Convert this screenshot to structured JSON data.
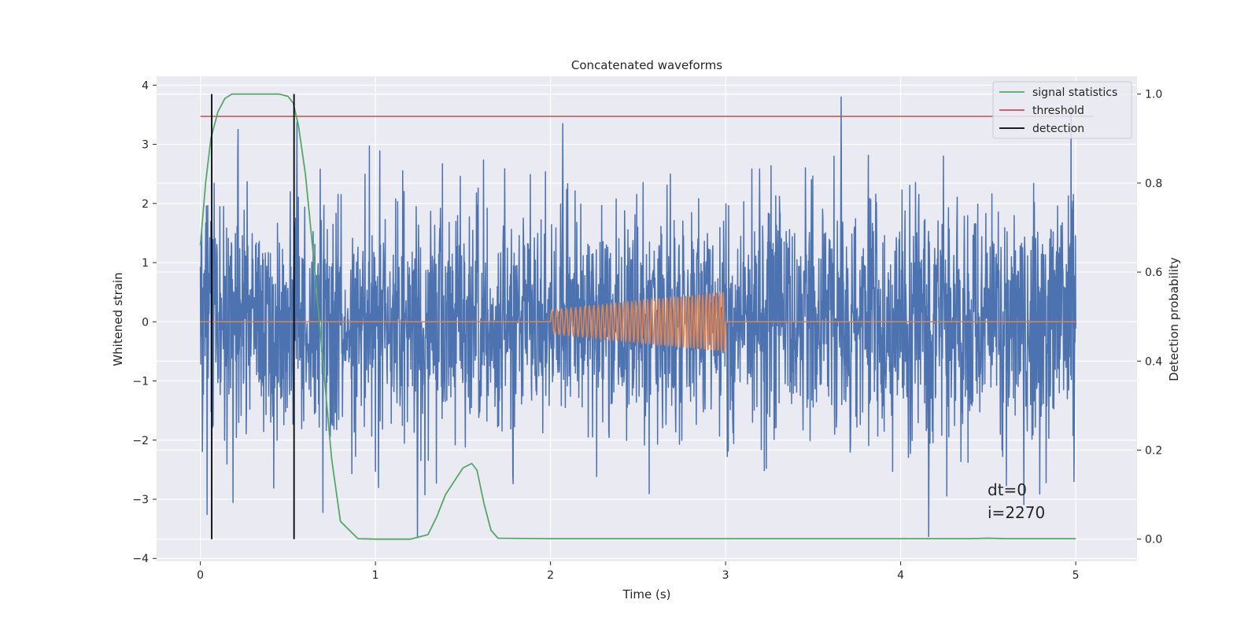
{
  "chart_data": {
    "type": "line",
    "title": "Concatenated waveforms",
    "xlabel": "Time (s)",
    "ylabel_left": "Whitened strain",
    "ylabel_right": "Detection probability",
    "xlim": [
      -0.25,
      5.35
    ],
    "ylim_left": [
      -4.05,
      4.15
    ],
    "ylim_right": [
      -0.05,
      1.04
    ],
    "xticks": [
      0,
      1,
      2,
      3,
      4,
      5
    ],
    "yticks_left": [
      -4,
      -3,
      -2,
      -1,
      0,
      1,
      2,
      3,
      4
    ],
    "yticks_right": [
      0.0,
      0.2,
      0.4,
      0.6,
      0.8,
      1.0
    ],
    "ytick_labels_left": [
      "−4",
      "−3",
      "−2",
      "−1",
      "0",
      "1",
      "2",
      "3",
      "4"
    ],
    "ytick_labels_right": [
      "0.0",
      "0.2",
      "0.4",
      "0.6",
      "0.8",
      "1.0"
    ],
    "grid": true,
    "legend_position": "top-right",
    "legend": [
      {
        "label": "signal statistics",
        "color": "#55a868"
      },
      {
        "label": "threshold",
        "color": "#c44e52"
      },
      {
        "label": "detection",
        "color": "#000000"
      }
    ],
    "series": [
      {
        "role": "whitened-noise",
        "color": "#4c72b0",
        "x_range": [
          0,
          5
        ],
        "typical_amplitude": 1.0,
        "min": -3.65,
        "max": 3.8
      },
      {
        "role": "injected-chirp",
        "color": "#dd8452",
        "x_range": [
          0,
          5
        ],
        "active_range": [
          2,
          3
        ],
        "amplitude_start": 0.2,
        "amplitude_end": 0.5,
        "cycles": 44
      },
      {
        "name": "signal statistics",
        "color": "#55a868",
        "axis": "right",
        "x": [
          0.0,
          0.03,
          0.06,
          0.1,
          0.14,
          0.18,
          0.25,
          0.35,
          0.45,
          0.5,
          0.53,
          0.56,
          0.6,
          0.65,
          0.7,
          0.75,
          0.8,
          0.9,
          1.0,
          1.1,
          1.2,
          1.3,
          1.35,
          1.4,
          1.45,
          1.5,
          1.55,
          1.58,
          1.62,
          1.66,
          1.7,
          2.0,
          3.0,
          4.0,
          4.4,
          4.5,
          4.6,
          5.0
        ],
        "y": [
          0.66,
          0.8,
          0.9,
          0.96,
          0.99,
          1.0,
          1.0,
          1.0,
          1.0,
          0.995,
          0.98,
          0.93,
          0.82,
          0.62,
          0.4,
          0.18,
          0.04,
          0.001,
          0.0,
          0.0,
          0.0,
          0.01,
          0.05,
          0.1,
          0.13,
          0.16,
          0.17,
          0.155,
          0.08,
          0.02,
          0.002,
          0.001,
          0.001,
          0.001,
          0.001,
          0.002,
          0.001,
          0.001
        ]
      },
      {
        "name": "threshold",
        "color": "#c44e52",
        "axis": "right",
        "x": [
          0,
          5.1
        ],
        "y": [
          0.95,
          0.95
        ]
      }
    ],
    "detections": [
      0.065,
      0.535
    ],
    "annotations": [
      "dt=0",
      "i=2270"
    ]
  }
}
